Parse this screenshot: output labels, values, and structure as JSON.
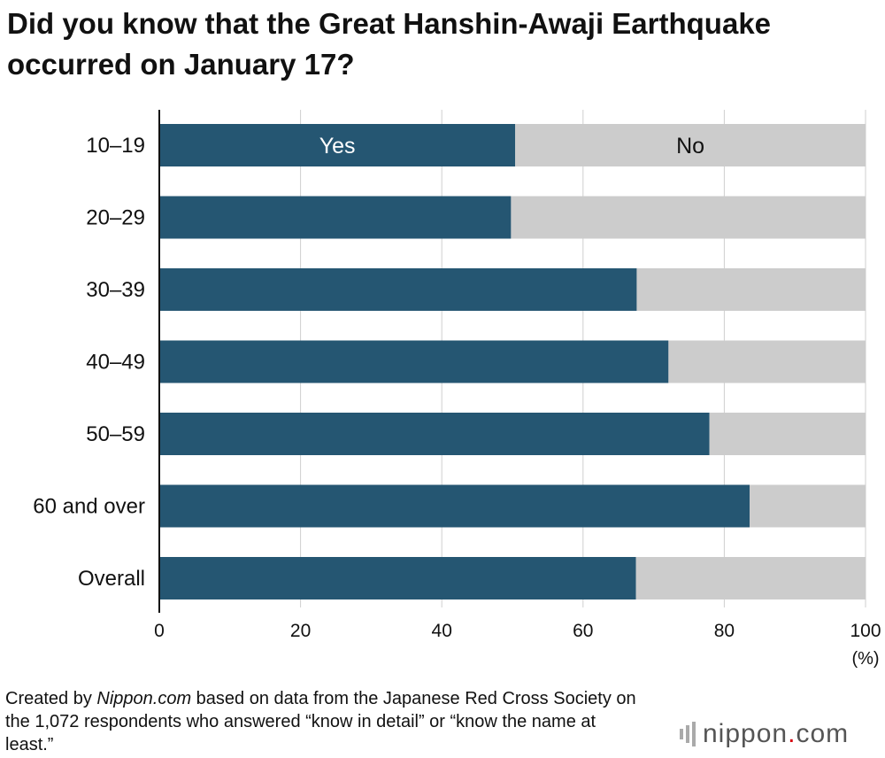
{
  "title": "Did you know that the Great Hanshin-Awaji Earthquake occurred on January 17?",
  "source": {
    "prefix": "Created by ",
    "site": "Nippon.com",
    "suffix": " based on data from the Japanese Red Cross Society on the 1,072 respondents who answered “know in detail” or “know the name at least.”"
  },
  "logo": {
    "name": "nippon",
    "dot": ".",
    "tld": "com"
  },
  "chart_data": {
    "type": "bar",
    "orientation": "horizontal",
    "stacked": true,
    "categories": [
      "10–19",
      "20–29",
      "30–39",
      "40–49",
      "50–59",
      "60 and over",
      "Overall"
    ],
    "series": [
      {
        "name": "Yes",
        "values": [
          50.4,
          49.8,
          67.6,
          72.1,
          77.9,
          83.6,
          67.5
        ],
        "color": "#255672"
      },
      {
        "name": "No",
        "values": [
          49.6,
          50.2,
          32.4,
          27.9,
          22.1,
          16.4,
          32.5
        ],
        "color": "#cccccc"
      }
    ],
    "x_ticks": [
      "0",
      "20",
      "40",
      "60",
      "80",
      "100"
    ],
    "xlim": [
      0,
      100
    ],
    "unit": "(%)",
    "grid": true,
    "legend": "inline labels on first bar"
  }
}
